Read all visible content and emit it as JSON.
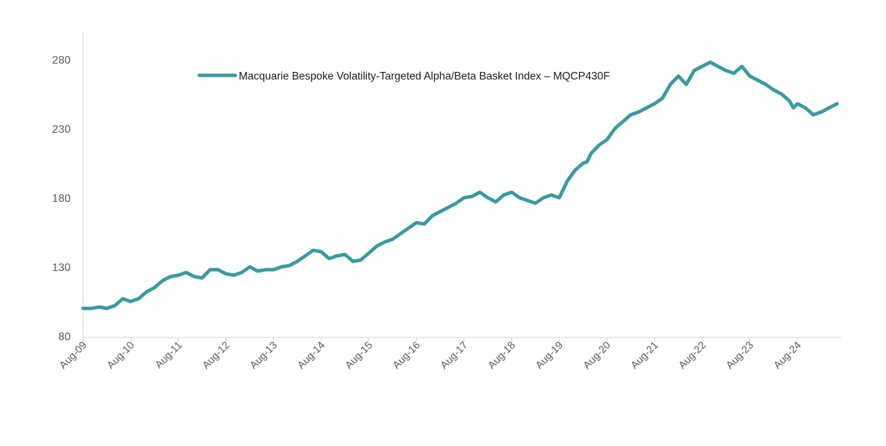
{
  "chart_data": {
    "type": "line",
    "title": "",
    "xlabel": "",
    "ylabel": "",
    "x_ticks": [
      "Aug-09",
      "Aug-10",
      "Aug-11",
      "Aug-12",
      "Aug-13",
      "Aug-14",
      "Aug-15",
      "Aug-16",
      "Aug-17",
      "Aug-18",
      "Aug-19",
      "Aug-20",
      "Aug-21",
      "Aug-22",
      "Aug-23",
      "Aug-24"
    ],
    "y_ticks": [
      "80",
      "130",
      "180",
      "230",
      "280"
    ],
    "ylim": [
      80,
      280
    ],
    "xlim": [
      "2009-08",
      "2025-06"
    ],
    "grid": false,
    "legend_position": "top-center",
    "series": [
      {
        "name": "Macquarie Bespoke Volatility-Targeted Alpha/Beta Basket Index – MQCP430F",
        "color": "#3a9aa0",
        "x": [
          "2009-08",
          "2009-10",
          "2009-12",
          "2010-02",
          "2010-04",
          "2010-06",
          "2010-08",
          "2010-10",
          "2010-12",
          "2011-02",
          "2011-04",
          "2011-06",
          "2011-08",
          "2011-10",
          "2011-12",
          "2012-02",
          "2012-04",
          "2012-06",
          "2012-08",
          "2012-10",
          "2012-12",
          "2013-02",
          "2013-04",
          "2013-06",
          "2013-08",
          "2013-10",
          "2013-12",
          "2014-02",
          "2014-04",
          "2014-06",
          "2014-08",
          "2014-10",
          "2014-12",
          "2015-02",
          "2015-04",
          "2015-06",
          "2015-08",
          "2015-10",
          "2015-12",
          "2016-02",
          "2016-04",
          "2016-06",
          "2016-08",
          "2016-10",
          "2016-12",
          "2017-02",
          "2017-04",
          "2017-06",
          "2017-08",
          "2017-10",
          "2017-12",
          "2018-02",
          "2018-04",
          "2018-06",
          "2018-08",
          "2018-10",
          "2018-12",
          "2019-02",
          "2019-04",
          "2019-06",
          "2019-08",
          "2019-10",
          "2019-12",
          "2020-02",
          "2020-03",
          "2020-04",
          "2020-06",
          "2020-08",
          "2020-10",
          "2020-12",
          "2021-02",
          "2021-04",
          "2021-06",
          "2021-08",
          "2021-10",
          "2021-12",
          "2022-01",
          "2022-02",
          "2022-04",
          "2022-06",
          "2022-08",
          "2022-10",
          "2022-12",
          "2023-02",
          "2023-04",
          "2023-06",
          "2023-08",
          "2023-10",
          "2023-12",
          "2024-02",
          "2024-04",
          "2024-06",
          "2024-07",
          "2024-08",
          "2024-10",
          "2024-12",
          "2025-02",
          "2025-04",
          "2025-06"
        ],
        "values": [
          100,
          100,
          101,
          100,
          102,
          107,
          105,
          107,
          112,
          115,
          120,
          123,
          124,
          126,
          123,
          122,
          128,
          128,
          125,
          124,
          126,
          130,
          127,
          128,
          128,
          130,
          131,
          134,
          138,
          142,
          141,
          136,
          138,
          139,
          134,
          135,
          140,
          145,
          148,
          150,
          154,
          158,
          162,
          161,
          167,
          170,
          173,
          176,
          180,
          181,
          184,
          180,
          177,
          182,
          184,
          180,
          178,
          176,
          180,
          182,
          180,
          192,
          200,
          205,
          206,
          212,
          218,
          222,
          230,
          235,
          240,
          242,
          245,
          248,
          252,
          262,
          265,
          268,
          262,
          272,
          275,
          278,
          275,
          272,
          270,
          275,
          268,
          265,
          262,
          258,
          255,
          250,
          245,
          248,
          245,
          240,
          242,
          245,
          248
        ]
      }
    ]
  }
}
